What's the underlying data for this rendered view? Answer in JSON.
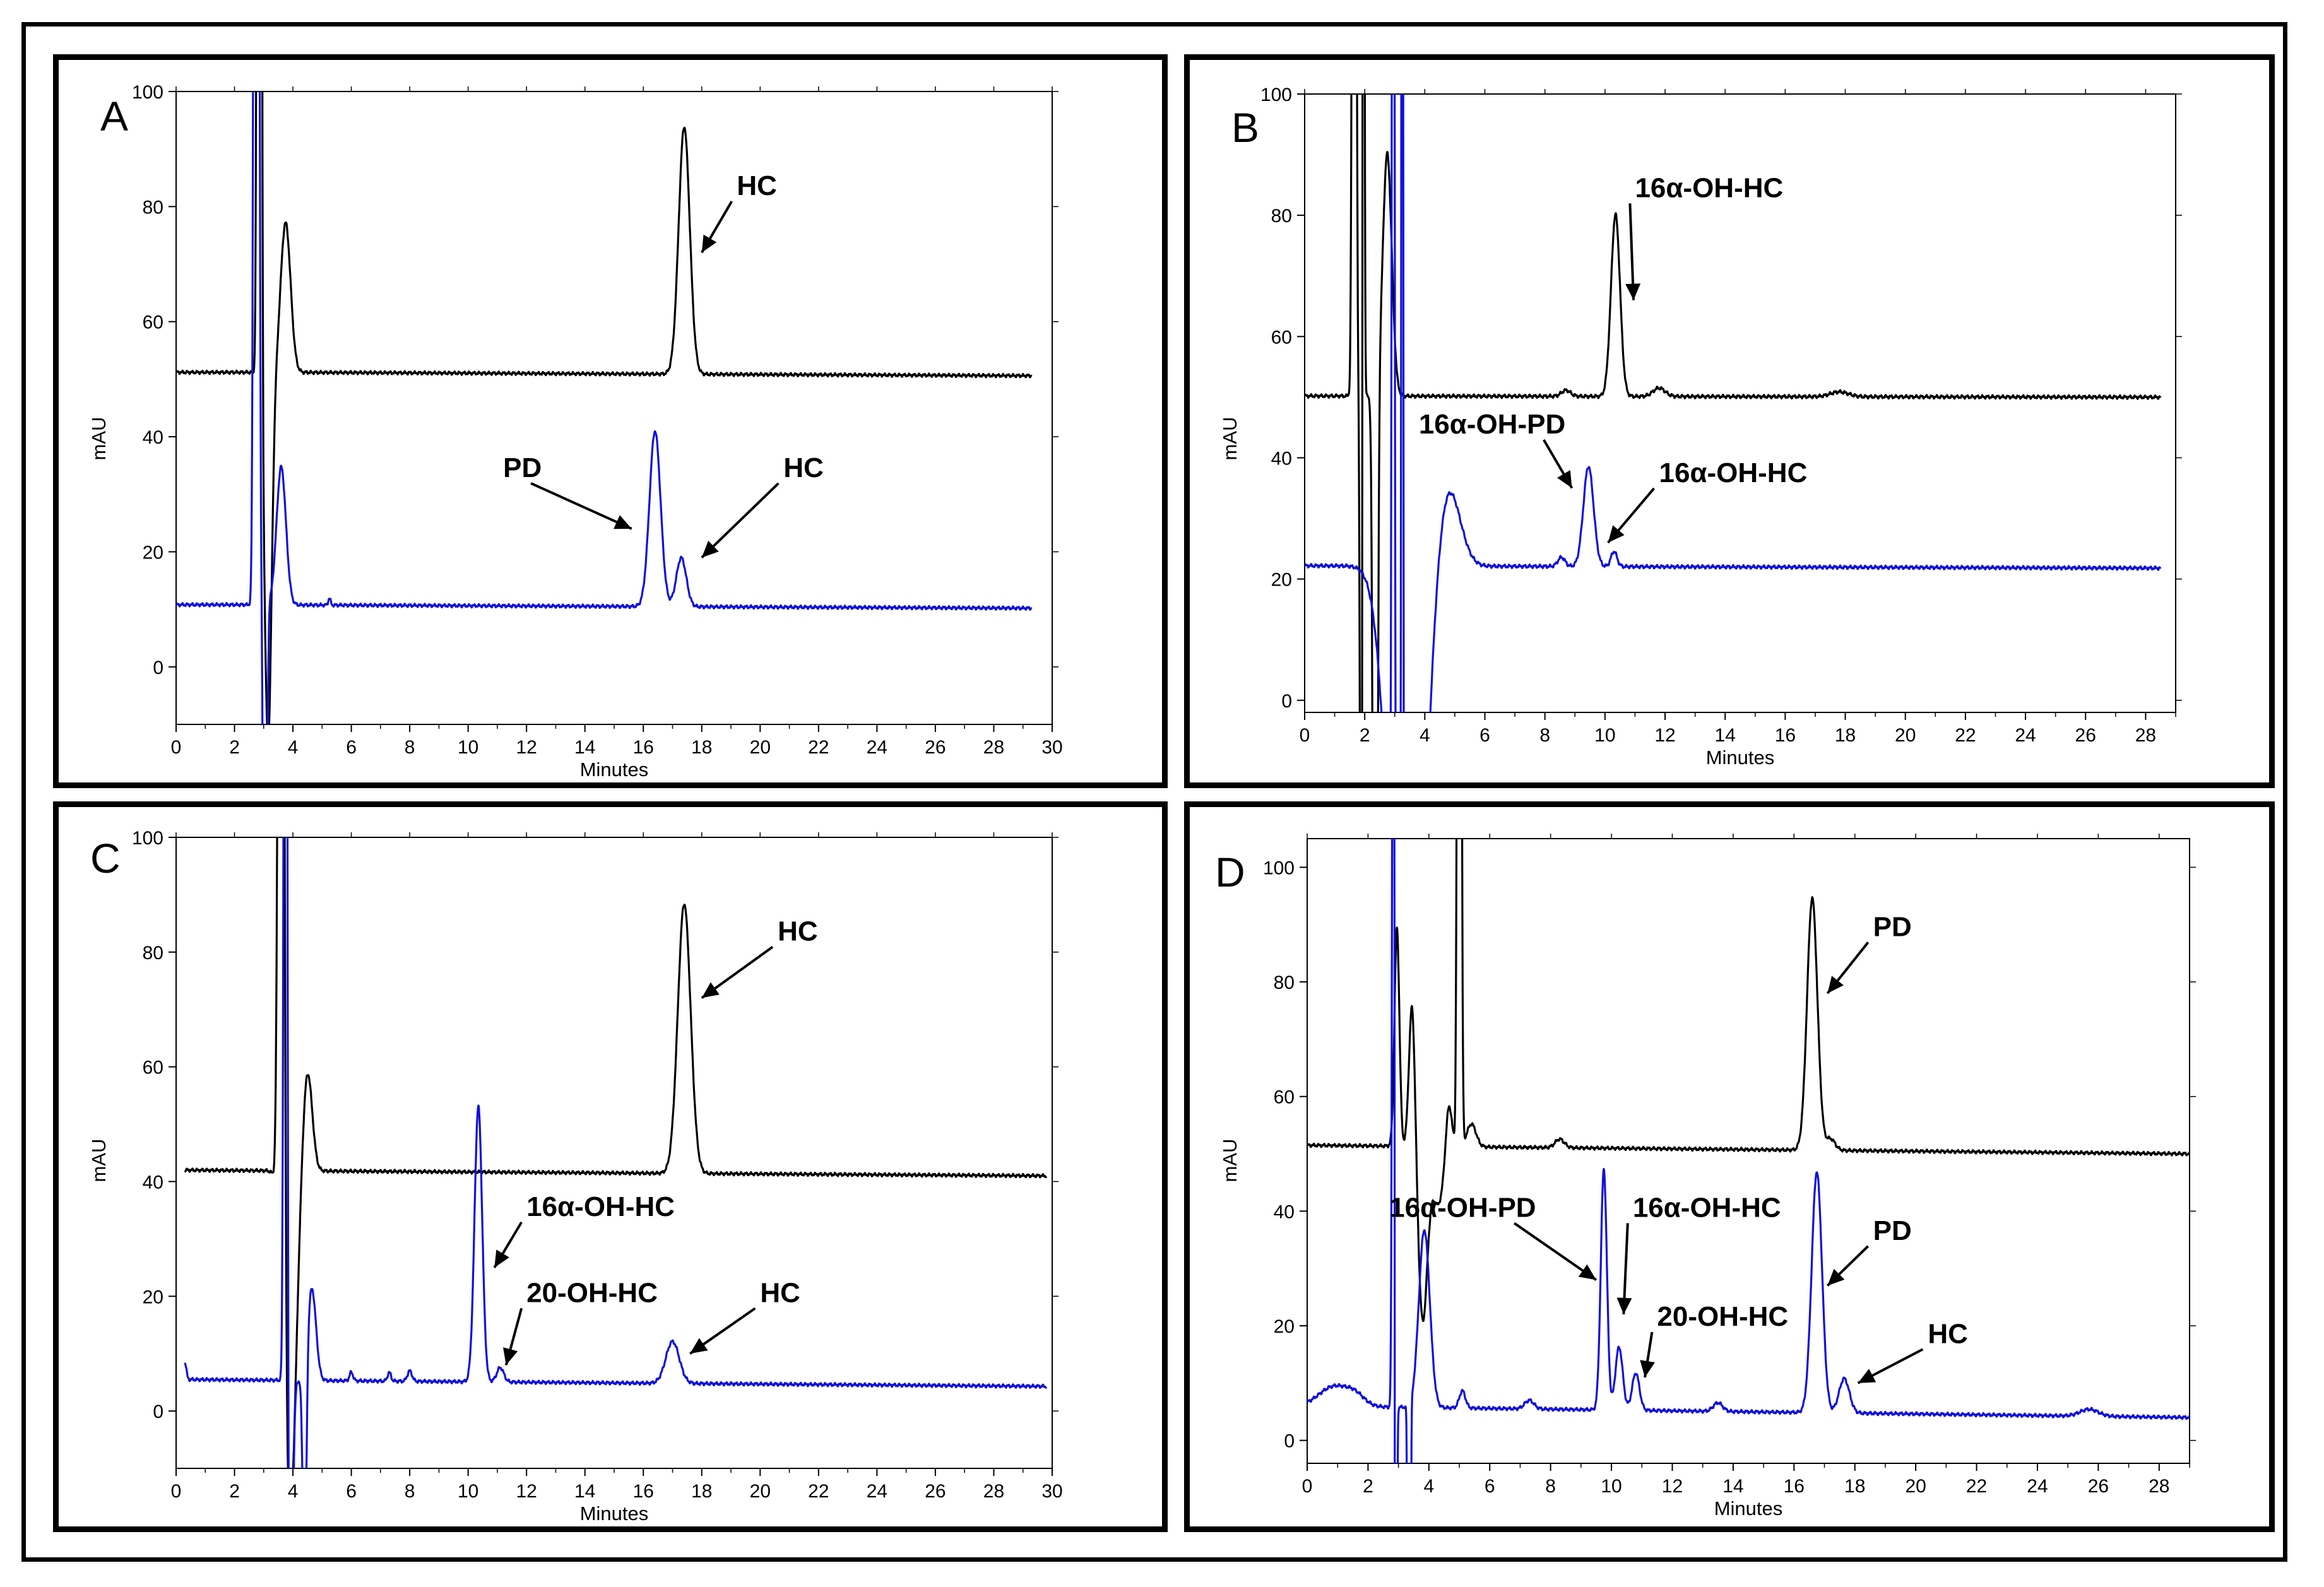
{
  "chart_data": [
    {
      "panel": "A",
      "type": "line",
      "xlabel": "Minutes",
      "ylabel": "mAU",
      "xlim": [
        0,
        30
      ],
      "ylim": [
        -10,
        100
      ],
      "xticks": [
        0,
        2,
        4,
        6,
        8,
        10,
        12,
        14,
        16,
        18,
        20,
        22,
        24,
        26,
        28,
        30
      ],
      "yticks": [
        0,
        20,
        40,
        60,
        80,
        100
      ],
      "series": [
        {
          "name": "black trace",
          "color": "#000000",
          "baseline": [
            [
              0,
              51.2
            ],
            [
              3.5,
              51.2
            ],
            [
              29.3,
              50.6
            ]
          ],
          "peaks": [
            [
              2.85,
              600,
              0.05
            ],
            [
              3.75,
              26,
              0.17
            ],
            [
              17.4,
              43,
              0.19
            ]
          ],
          "dips": [
            [
              3.15,
              64,
              0.12
            ]
          ]
        },
        {
          "name": "blue trace",
          "color": "#1010dd",
          "baseline": [
            [
              0,
              10.8
            ],
            [
              2.3,
              10.8
            ],
            [
              29.3,
              10.2
            ]
          ],
          "peaks": [
            [
              2.75,
              600,
              0.06
            ],
            [
              3.6,
              24,
              0.16
            ],
            [
              16.4,
              30.5,
              0.19
            ],
            [
              17.3,
              8.5,
              0.17
            ],
            [
              5.25,
              1.2,
              0.04
            ]
          ],
          "dips": [
            [
              3.05,
              130,
              0.05
            ]
          ]
        }
      ],
      "annotations": [
        {
          "text": "HC",
          "x": 19.2,
          "y": 82,
          "arrow_to": [
            18.0,
            72
          ]
        },
        {
          "text": "PD",
          "x": 11.2,
          "y": 33,
          "arrow_to": [
            15.6,
            24
          ]
        },
        {
          "text": "HC",
          "x": 20.8,
          "y": 33,
          "arrow_to": [
            18.0,
            19
          ]
        }
      ]
    },
    {
      "panel": "B",
      "type": "line",
      "xlabel": "Minutes",
      "ylabel": "mAU",
      "xlim": [
        0,
        29
      ],
      "ylim": [
        -2,
        100
      ],
      "xticks": [
        0,
        2,
        4,
        6,
        8,
        10,
        12,
        14,
        16,
        18,
        20,
        22,
        24,
        26,
        28
      ],
      "yticks": [
        0,
        20,
        40,
        60,
        80,
        100
      ],
      "series": [
        {
          "name": "black trace",
          "color": "#000000",
          "baseline": [
            [
              0,
              50.2
            ],
            [
              28.5,
              50.0
            ]
          ],
          "peaks": [
            [
              1.65,
              300,
              0.05
            ],
            [
              1.95,
              300,
              0.03
            ],
            [
              2.75,
              40,
              0.15
            ],
            [
              10.35,
              30,
              0.15
            ],
            [
              8.7,
              1,
              0.15
            ],
            [
              11.8,
              1.4,
              0.2
            ],
            [
              17.8,
              0.8,
              0.3
            ]
          ],
          "dips": [
            [
              1.9,
              200,
              0.04
            ],
            [
              2.35,
              200,
              0.06
            ]
          ]
        },
        {
          "name": "blue trace",
          "color": "#1010dd",
          "baseline": [
            [
              0,
              22.2
            ],
            [
              28.5,
              21.8
            ]
          ],
          "peaks": [
            [
              2.95,
              300,
              0.04
            ],
            [
              3.25,
              300,
              0.03
            ],
            [
              4.75,
              14,
              0.4
            ],
            [
              8.55,
              1.5,
              0.12
            ],
            [
              9.45,
              16.5,
              0.17
            ],
            [
              10.3,
              2.5,
              0.1
            ]
          ],
          "dips": [
            [
              3.4,
              100,
              0.5
            ]
          ]
        }
      ],
      "annotations": [
        {
          "text": "16α-OH-HC",
          "x": 11.0,
          "y": 83,
          "arrow_to": [
            10.95,
            66
          ]
        },
        {
          "text": "16α-OH-PD",
          "x": 3.8,
          "y": 44,
          "arrow_to": [
            8.9,
            35
          ]
        },
        {
          "text": "16α-OH-HC",
          "x": 11.8,
          "y": 36,
          "arrow_to": [
            10.1,
            26
          ]
        }
      ]
    },
    {
      "panel": "C",
      "type": "line",
      "xlabel": "Minutes",
      "ylabel": "mAU",
      "xlim": [
        0,
        30
      ],
      "ylim": [
        -10,
        100
      ],
      "xticks": [
        0,
        2,
        4,
        6,
        8,
        10,
        12,
        14,
        16,
        18,
        20,
        22,
        24,
        26,
        28,
        30
      ],
      "yticks": [
        0,
        20,
        40,
        60,
        80,
        100
      ],
      "series": [
        {
          "name": "black trace",
          "color": "#000000",
          "baseline": [
            [
              0.3,
              42
            ],
            [
              29.8,
              41
            ]
          ],
          "peaks": [
            [
              3.6,
              300,
              0.08
            ],
            [
              4.5,
              17.5,
              0.16
            ],
            [
              17.4,
              47,
              0.22
            ]
          ],
          "dips": [
            [
              3.9,
              60,
              0.2
            ]
          ]
        },
        {
          "name": "blue trace",
          "color": "#1010dd",
          "baseline": [
            [
              0.3,
              5.5
            ],
            [
              29.8,
              4.3
            ]
          ],
          "peaks": [
            [
              0.3,
              3,
              0.05
            ],
            [
              3.75,
              300,
              0.05
            ],
            [
              4.65,
              16,
              0.14
            ],
            [
              6.0,
              1.5,
              0.06
            ],
            [
              7.3,
              1.5,
              0.06
            ],
            [
              8.0,
              1.8,
              0.08
            ],
            [
              10.35,
              48,
              0.13
            ],
            [
              11.1,
              2.5,
              0.12
            ],
            [
              17.0,
              7.3,
              0.23
            ]
          ],
          "dips": [
            [
              3.9,
              60,
              0.08
            ],
            [
              4.4,
              40,
              0.06
            ]
          ]
        }
      ],
      "annotations": [
        {
          "text": "16α-OH-HC",
          "x": 12.0,
          "y": 34,
          "arrow_to": [
            10.9,
            25
          ]
        },
        {
          "text": "20-OH-HC",
          "x": 12.0,
          "y": 19,
          "arrow_to": [
            11.3,
            8
          ]
        },
        {
          "text": "HC",
          "x": 20.0,
          "y": 19,
          "arrow_to": [
            17.6,
            10
          ]
        },
        {
          "text": "HC",
          "x": 20.6,
          "y": 82,
          "arrow_to": [
            18.0,
            72
          ]
        }
      ]
    },
    {
      "panel": "D",
      "type": "line",
      "xlabel": "Minutes",
      "ylabel": "mAU",
      "xlim": [
        0,
        29
      ],
      "ylim": [
        -4,
        105
      ],
      "xticks": [
        0,
        2,
        4,
        6,
        8,
        10,
        12,
        14,
        16,
        18,
        20,
        22,
        24,
        26,
        28
      ],
      "yticks": [
        0,
        20,
        40,
        60,
        80,
        100
      ],
      "series": [
        {
          "name": "black trace",
          "color": "#000000",
          "baseline": [
            [
              0,
              51.5
            ],
            [
              29,
              50
            ]
          ],
          "peaks": [
            [
              2.95,
              38,
              0.08
            ],
            [
              3.45,
              26,
              0.1
            ],
            [
              4.65,
              9,
              0.1
            ],
            [
              5.0,
              300,
              0.05
            ],
            [
              5.4,
              4,
              0.15
            ],
            [
              8.3,
              1.5,
              0.15
            ],
            [
              16.6,
              44,
              0.17
            ],
            [
              17.2,
              2,
              0.15
            ]
          ],
          "dips": [
            [
              3.8,
              30,
              0.15
            ],
            [
              4.3,
              10,
              0.2
            ]
          ]
        },
        {
          "name": "blue trace",
          "color": "#1010dd",
          "baseline": [
            [
              0,
              6
            ],
            [
              29,
              4
            ]
          ],
          "peaks": [
            [
              0.9,
              3.5,
              0.5
            ],
            [
              1.6,
              1.5,
              0.3
            ],
            [
              2.85,
              300,
              0.04
            ],
            [
              3.85,
              31,
              0.18
            ],
            [
              5.1,
              3,
              0.1
            ],
            [
              7.3,
              1.5,
              0.15
            ],
            [
              9.75,
              42,
              0.1
            ],
            [
              10.25,
              11,
              0.12
            ],
            [
              10.8,
              6.5,
              0.12
            ],
            [
              13.5,
              1.5,
              0.15
            ],
            [
              16.75,
              42,
              0.17
            ],
            [
              17.65,
              6,
              0.17
            ],
            [
              25.7,
              1.2,
              0.3
            ]
          ],
          "dips": [
            [
              2.9,
              300,
              0.03
            ],
            [
              3.35,
              300,
              0.03
            ]
          ]
        }
      ],
      "annotations": [
        {
          "text": "PD",
          "x": 18.6,
          "y": 88,
          "arrow_to": [
            17.1,
            78
          ]
        },
        {
          "text": "16α-OH-PD",
          "x": 2.7,
          "y": 39,
          "arrow_to": [
            9.5,
            28
          ]
        },
        {
          "text": "16α-OH-HC",
          "x": 10.7,
          "y": 39,
          "arrow_to": [
            10.4,
            22
          ]
        },
        {
          "text": "PD",
          "x": 18.6,
          "y": 35,
          "arrow_to": [
            17.1,
            27
          ]
        },
        {
          "text": "20-OH-HC",
          "x": 11.5,
          "y": 20,
          "arrow_to": [
            11.1,
            11
          ]
        },
        {
          "text": "HC",
          "x": 20.4,
          "y": 17,
          "arrow_to": [
            18.1,
            10
          ]
        }
      ]
    }
  ]
}
